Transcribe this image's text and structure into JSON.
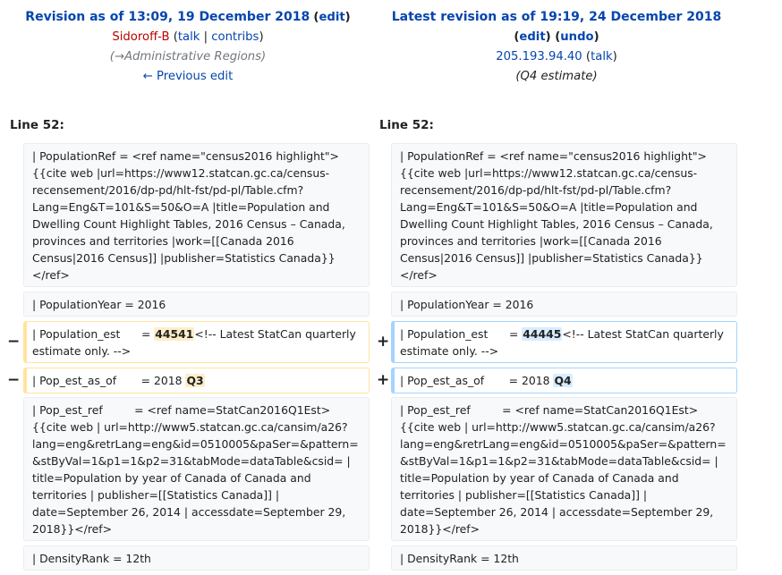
{
  "left_header": {
    "title": "Revision as of 13:09, 19 December 2018",
    "edit_label": "edit",
    "user": "Sidoroff-B",
    "talk_label": "talk",
    "contribs_label": "contribs",
    "summary_arrow": "→",
    "summary": "Administrative Regions",
    "prev_label": "← Previous edit"
  },
  "right_header": {
    "title": "Latest revision as of 19:19, 24 December 2018",
    "edit_label": "edit",
    "undo_label": "undo",
    "user": "205.193.94.40",
    "talk_label": "talk",
    "summary": "Q4 estimate"
  },
  "diff": {
    "left_line": "Line 52:",
    "right_line": "Line 52:",
    "minus": "−",
    "plus": "+",
    "context1": "| PopulationRef = <ref name=\"census2016 highlight\">{{cite web |url=https://www12.statcan.gc.ca/census-recensement/2016/dp-pd/hlt-fst/pd-pl/Table.cfm?Lang=Eng&T=101&S=50&O=A |title=Population and Dwelling Count Highlight Tables, 2016 Census – Canada, provinces and territories |work=[[Canada 2016 Census|2016 Census]] |publisher=Statistics Canada}}</ref>",
    "context2": "| PopulationYear = 2016",
    "del1_pre": "| Population_est      = ",
    "del1_hl": "44541",
    "del1_post": "<!-- Latest StatCan quarterly estimate only. -->",
    "add1_pre": "| Population_est      = ",
    "add1_hl": "44445",
    "add1_post": "<!-- Latest StatCan quarterly estimate only. -->",
    "del2_pre": "| Pop_est_as_of       = 2018 ",
    "del2_hl": "Q3",
    "add2_pre": "| Pop_est_as_of       = 2018 ",
    "add2_hl": "Q4",
    "context3": "| Pop_est_ref         = <ref name=StatCan2016Q1Est>{{cite web | url=http://www5.statcan.gc.ca/cansim/a26?lang=eng&retrLang=eng&id=0510005&paSer=&pattern=&stByVal=1&p1=1&p2=31&tabMode=dataTable&csid= | title=Population by year of Canada of Canada and territories | publisher=[[Statistics Canada]] | date=September 26, 2014 | accessdate=September 29, 2018}}</ref>",
    "context4": "| DensityRank = 12th"
  }
}
